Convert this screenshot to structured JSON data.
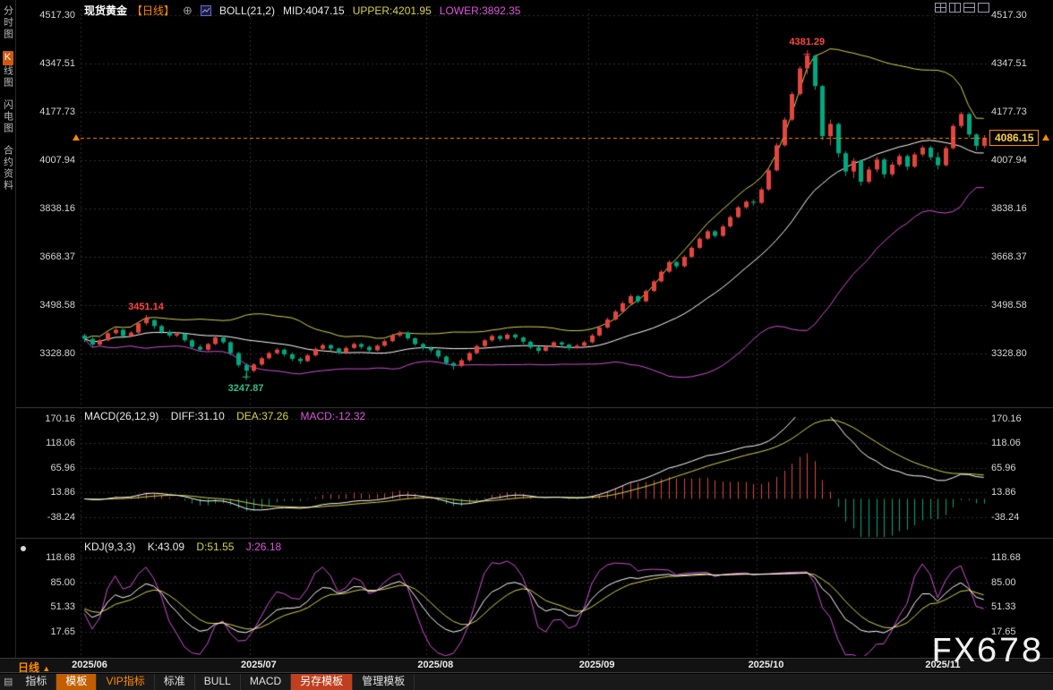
{
  "header": {
    "symbol": "现货黄金",
    "period_tag": "【日线】",
    "boll_label": "BOLL(21,2)",
    "boll_mid": "MID:4047.15",
    "boll_upper": "UPPER:4201.95",
    "boll_lower": "LOWER:3892.35"
  },
  "sidebar": {
    "items": [
      {
        "label": "分时图"
      },
      {
        "label": "K线图",
        "badge": "K",
        "rest": "线图",
        "active": true
      },
      {
        "label": "闪电图"
      },
      {
        "label": "合约资料"
      }
    ]
  },
  "macd": {
    "label": "MACD(26,12,9)",
    "diff": "DIFF:31.10",
    "dea": "DEA:37.26",
    "macd": "MACD:-12.32"
  },
  "kdj": {
    "label": "KDJ(9,3,3)",
    "k": "K:43.09",
    "d": "D:51.55",
    "j": "J:26.18"
  },
  "date_axis": {
    "period_label": "日线",
    "period_arrow": "▲"
  },
  "toolbar": {
    "items": [
      {
        "label": "指标"
      },
      {
        "label": "模板",
        "style": "active"
      },
      {
        "label": "VIP指标",
        "style": "vip"
      },
      {
        "label": "标准"
      },
      {
        "label": "BULL"
      },
      {
        "label": "MACD"
      },
      {
        "label": "另存模板",
        "style": "save"
      },
      {
        "label": "管理模板"
      }
    ]
  },
  "watermark": "FX678",
  "colors": {
    "up": "#e2463e",
    "down": "#00a87e",
    "boll_mid": "#ffffff",
    "boll_upper": "#d8d44a",
    "boll_lower": "#d44ed8",
    "diff": "#ffffff",
    "dea": "#d8d44a",
    "macd_pos": "#e2463e",
    "macd_neg": "#00a87e",
    "k": "#ffffff",
    "d": "#d8d44a",
    "j": "#d44ed8",
    "accent": "#ff8a00",
    "grid": "#2e2e2e",
    "price_line": "#ff8a00"
  },
  "chart_data": {
    "type": "candlestick",
    "symbol": "现货黄金",
    "period": "日线",
    "current_price": 4086.15,
    "months": [
      {
        "label": "2025/06",
        "start_bar": 0
      },
      {
        "label": "2025/07",
        "start_bar": 22
      },
      {
        "label": "2025/08",
        "start_bar": 45
      },
      {
        "label": "2025/09",
        "start_bar": 66
      },
      {
        "label": "2025/10",
        "start_bar": 88
      },
      {
        "label": "2025/11",
        "start_bar": 111
      }
    ],
    "main_axis": {
      "ticks": [
        4517.3,
        4347.51,
        4177.73,
        4007.94,
        3838.16,
        3668.37,
        3498.58,
        3328.8
      ],
      "ylim": [
        3140,
        4539
      ]
    },
    "macd_axis": {
      "ticks": [
        170.16,
        118.06,
        65.96,
        13.86,
        -38.24
      ],
      "ylim": [
        -81,
        174
      ]
    },
    "kdj_axis": {
      "ticks": [
        118.68,
        85.0,
        51.33,
        17.65
      ],
      "ylim": [
        -16,
        135
      ]
    },
    "indicators": {
      "boll": {
        "period": 21,
        "mult": 2,
        "mid": 4047.15,
        "upper": 4201.95,
        "lower": 3892.35
      },
      "macd": {
        "fast": 26,
        "slow": 12,
        "signal": 9,
        "diff": 31.1,
        "dea": 37.26,
        "macd": -12.32
      },
      "kdj": {
        "params": [
          9,
          3,
          3
        ],
        "k": 43.09,
        "d": 51.55,
        "j": 26.18
      }
    },
    "annotations": [
      {
        "text": "4381.29",
        "bar": 94,
        "price": 4381.29,
        "placement": "above",
        "color": "#ff4646"
      },
      {
        "text": "3451.14",
        "bar": 8,
        "price": 3451.14,
        "placement": "above",
        "color": "#ff4646"
      },
      {
        "text": "3247.87",
        "bar": 21,
        "price": 3247.87,
        "placement": "below",
        "color": "#2fbf8f"
      }
    ],
    "ohlc": [
      [
        3392,
        3398,
        3368,
        3380
      ],
      [
        3380,
        3386,
        3352,
        3360
      ],
      [
        3360,
        3380,
        3354,
        3375
      ],
      [
        3375,
        3405,
        3372,
        3400
      ],
      [
        3400,
        3420,
        3395,
        3412
      ],
      [
        3412,
        3416,
        3382,
        3390
      ],
      [
        3390,
        3408,
        3385,
        3402
      ],
      [
        3402,
        3440,
        3398,
        3435
      ],
      [
        3435,
        3451.14,
        3428,
        3448
      ],
      [
        3446,
        3449,
        3415,
        3425
      ],
      [
        3425,
        3430,
        3398,
        3405
      ],
      [
        3405,
        3412,
        3385,
        3392
      ],
      [
        3392,
        3404,
        3386,
        3398
      ],
      [
        3398,
        3402,
        3368,
        3375
      ],
      [
        3375,
        3380,
        3345,
        3352
      ],
      [
        3352,
        3360,
        3335,
        3342
      ],
      [
        3342,
        3366,
        3338,
        3362
      ],
      [
        3362,
        3390,
        3358,
        3385
      ],
      [
        3385,
        3392,
        3362,
        3368
      ],
      [
        3368,
        3372,
        3322,
        3330
      ],
      [
        3330,
        3335,
        3280,
        3288
      ],
      [
        3288,
        3295,
        3247.87,
        3268
      ],
      [
        3268,
        3295,
        3262,
        3290
      ],
      [
        3290,
        3318,
        3285,
        3312
      ],
      [
        3312,
        3336,
        3308,
        3330
      ],
      [
        3330,
        3348,
        3325,
        3342
      ],
      [
        3342,
        3346,
        3318,
        3326
      ],
      [
        3326,
        3332,
        3302,
        3310
      ],
      [
        3310,
        3316,
        3292,
        3302
      ],
      [
        3302,
        3328,
        3298,
        3322
      ],
      [
        3322,
        3350,
        3318,
        3345
      ],
      [
        3345,
        3364,
        3340,
        3358
      ],
      [
        3358,
        3362,
        3338,
        3346
      ],
      [
        3346,
        3350,
        3325,
        3332
      ],
      [
        3332,
        3354,
        3328,
        3348
      ],
      [
        3348,
        3368,
        3344,
        3362
      ],
      [
        3362,
        3366,
        3344,
        3352
      ],
      [
        3352,
        3356,
        3332,
        3340
      ],
      [
        3340,
        3362,
        3336,
        3356
      ],
      [
        3356,
        3378,
        3352,
        3372
      ],
      [
        3372,
        3398,
        3368,
        3392
      ],
      [
        3392,
        3408,
        3386,
        3402
      ],
      [
        3402,
        3406,
        3375,
        3382
      ],
      [
        3382,
        3386,
        3355,
        3362
      ],
      [
        3362,
        3366,
        3340,
        3348
      ],
      [
        3348,
        3352,
        3332,
        3340
      ],
      [
        3340,
        3344,
        3310,
        3318
      ],
      [
        3318,
        3322,
        3288,
        3295
      ],
      [
        3295,
        3300,
        3272,
        3285
      ],
      [
        3285,
        3312,
        3280,
        3305
      ],
      [
        3305,
        3336,
        3300,
        3330
      ],
      [
        3330,
        3360,
        3326,
        3355
      ],
      [
        3355,
        3380,
        3350,
        3375
      ],
      [
        3375,
        3396,
        3370,
        3390
      ],
      [
        3390,
        3394,
        3372,
        3380
      ],
      [
        3380,
        3400,
        3376,
        3395
      ],
      [
        3395,
        3399,
        3378,
        3385
      ],
      [
        3385,
        3389,
        3362,
        3370
      ],
      [
        3370,
        3374,
        3344,
        3350
      ],
      [
        3350,
        3354,
        3330,
        3338
      ],
      [
        3338,
        3358,
        3334,
        3352
      ],
      [
        3352,
        3372,
        3348,
        3368
      ],
      [
        3368,
        3372,
        3352,
        3360
      ],
      [
        3360,
        3364,
        3340,
        3348
      ],
      [
        3348,
        3362,
        3344,
        3356
      ],
      [
        3356,
        3374,
        3352,
        3368
      ],
      [
        3368,
        3398,
        3364,
        3392
      ],
      [
        3392,
        3426,
        3388,
        3420
      ],
      [
        3420,
        3454,
        3416,
        3448
      ],
      [
        3448,
        3482,
        3444,
        3476
      ],
      [
        3476,
        3512,
        3472,
        3505
      ],
      [
        3505,
        3536,
        3500,
        3530
      ],
      [
        3530,
        3534,
        3505,
        3512
      ],
      [
        3512,
        3554,
        3508,
        3548
      ],
      [
        3548,
        3588,
        3544,
        3582
      ],
      [
        3582,
        3622,
        3578,
        3616
      ],
      [
        3616,
        3656,
        3612,
        3650
      ],
      [
        3650,
        3654,
        3628,
        3635
      ],
      [
        3635,
        3674,
        3630,
        3668
      ],
      [
        3668,
        3706,
        3664,
        3700
      ],
      [
        3700,
        3738,
        3696,
        3732
      ],
      [
        3732,
        3764,
        3728,
        3758
      ],
      [
        3758,
        3762,
        3735,
        3742
      ],
      [
        3742,
        3781,
        3738,
        3775
      ],
      [
        3775,
        3814,
        3770,
        3808
      ],
      [
        3808,
        3848,
        3804,
        3842
      ],
      [
        3842,
        3868,
        3836,
        3862
      ],
      [
        3862,
        3870,
        3848,
        3858
      ],
      [
        3858,
        3912,
        3854,
        3905
      ],
      [
        3905,
        3980,
        3900,
        3972
      ],
      [
        3972,
        4068,
        3968,
        4060
      ],
      [
        4060,
        4158,
        4055,
        4150
      ],
      [
        4150,
        4248,
        4145,
        4240
      ],
      [
        4240,
        4338,
        4235,
        4330
      ],
      [
        4330,
        4381.29,
        4310,
        4375
      ],
      [
        4375,
        4378,
        4255,
        4268
      ],
      [
        4268,
        4272,
        4078,
        4092
      ],
      [
        4092,
        4150,
        4060,
        4135
      ],
      [
        4135,
        4140,
        4018,
        4032
      ],
      [
        4032,
        4040,
        3952,
        3968
      ],
      [
        3968,
        4015,
        3945,
        4005
      ],
      [
        4005,
        4010,
        3918,
        3932
      ],
      [
        3932,
        3985,
        3925,
        3975
      ],
      [
        3975,
        4020,
        3965,
        4010
      ],
      [
        4010,
        4015,
        3945,
        3958
      ],
      [
        3958,
        4002,
        3950,
        3992
      ],
      [
        3992,
        4030,
        3985,
        4022
      ],
      [
        4022,
        4028,
        3972,
        3985
      ],
      [
        3985,
        4035,
        3980,
        4028
      ],
      [
        4028,
        4060,
        4020,
        4052
      ],
      [
        4052,
        4058,
        4008,
        4018
      ],
      [
        4018,
        4035,
        3975,
        3990
      ],
      [
        3990,
        4058,
        3985,
        4050
      ],
      [
        4050,
        4135,
        4045,
        4128
      ],
      [
        4128,
        4178,
        4120,
        4170
      ],
      [
        4170,
        4175,
        4088,
        4098
      ],
      [
        4098,
        4102,
        4042,
        4058
      ],
      [
        4058,
        4096,
        4050,
        4086.15
      ]
    ]
  }
}
